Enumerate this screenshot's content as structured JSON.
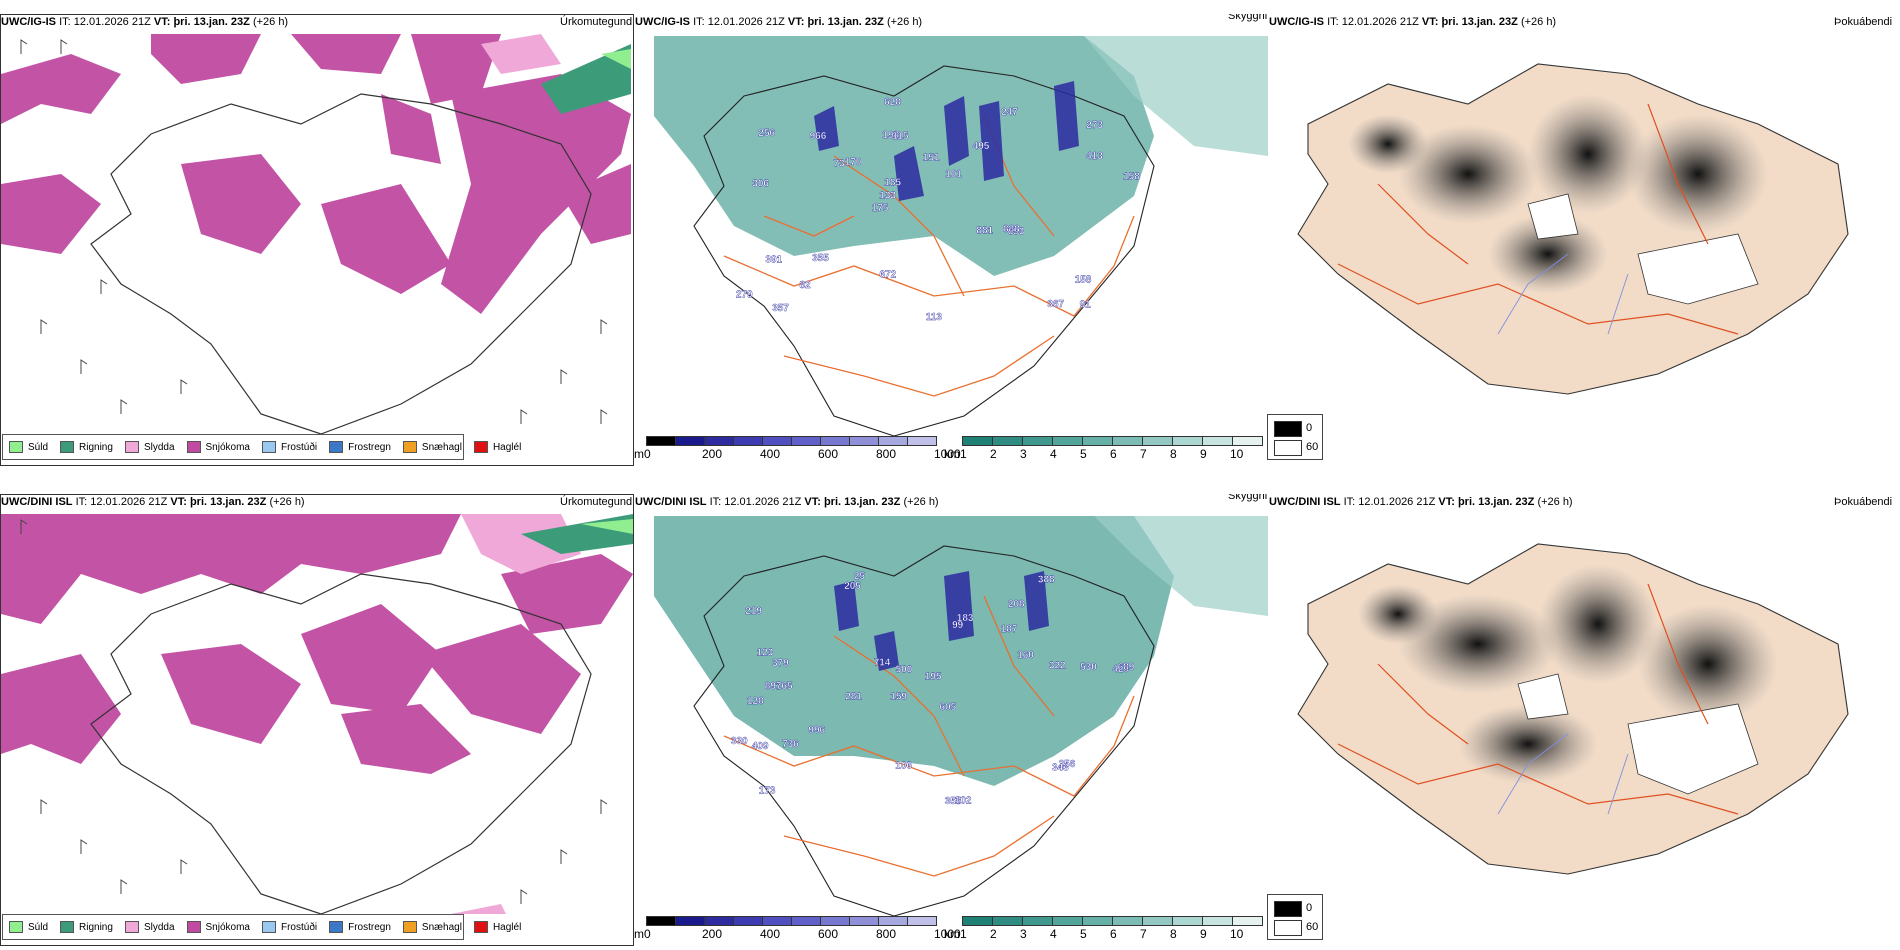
{
  "panels": [
    {
      "row": 0,
      "col": 0,
      "model": "UWC/IG-IS",
      "it_label": "IT:",
      "it": "12.01.2026 21Z",
      "vt_label": "VT:",
      "vt": "þri. 13.jan. 23Z",
      "lead": "(+26 h)",
      "name": "Úrkomutegund"
    },
    {
      "row": 0,
      "col": 1,
      "model": "UWC/IG-IS",
      "it_label": "IT:",
      "it": "12.01.2026 21Z",
      "vt_label": "VT:",
      "vt": "þri. 13.jan. 23Z",
      "lead": "(+26 h)",
      "name": "Skyggni"
    },
    {
      "row": 0,
      "col": 2,
      "model": "UWC/IG-IS",
      "it_label": "IT:",
      "it": "12.01.2026 21Z",
      "vt_label": "VT:",
      "vt": "þri. 13.jan. 23Z",
      "lead": "(+26 h)",
      "name": "Þokuábendi"
    },
    {
      "row": 1,
      "col": 0,
      "model": "UWC/DINI ISL",
      "it_label": "IT:",
      "it": "12.01.2026 21Z",
      "vt_label": "VT:",
      "vt": "þri. 13.jan. 23Z",
      "lead": "(+26 h)",
      "name": "Úrkomutegund"
    },
    {
      "row": 1,
      "col": 1,
      "model": "UWC/DINI ISL",
      "it_label": "IT:",
      "it": "12.01.2026 21Z",
      "vt_label": "VT:",
      "vt": "þri. 13.jan. 23Z",
      "lead": "(+26 h)",
      "name": "Skyggni"
    },
    {
      "row": 1,
      "col": 2,
      "model": "UWC/DINI ISL",
      "it_label": "IT:",
      "it": "12.01.2026 21Z",
      "vt_label": "VT:",
      "vt": "þri. 13.jan. 23Z",
      "lead": "(+26 h)",
      "name": "Þokuábendi"
    }
  ],
  "precip_legend": [
    {
      "label": "Súld",
      "color": "#90ee90"
    },
    {
      "label": "Rigning",
      "color": "#3c9b78"
    },
    {
      "label": "Slydda",
      "color": "#f0a8d8"
    },
    {
      "label": "Snjókoma",
      "color": "#c04aa0"
    },
    {
      "label": "Frostúði",
      "color": "#9ac8f0"
    },
    {
      "label": "Frostregn",
      "color": "#3c78c8"
    },
    {
      "label": "Snæhagl",
      "color": "#f0a020"
    },
    {
      "label": "Haglél",
      "color": "#e01010"
    }
  ],
  "cloudbase_scale": {
    "unit": "m",
    "ticks": [
      "0",
      "200",
      "400",
      "600",
      "800",
      "1000"
    ],
    "colors": [
      "#000000",
      "#1a1a8c",
      "#2c2ca0",
      "#3c3cb0",
      "#5050c0",
      "#6060c8",
      "#7878d0",
      "#9090d8",
      "#a8a8e0",
      "#c0c0e8"
    ]
  },
  "visibility_scale": {
    "unit": "km",
    "ticks": [
      "1",
      "2",
      "3",
      "4",
      "5",
      "6",
      "7",
      "8",
      "9",
      "10"
    ],
    "colors": [
      "#1f8076",
      "#2f8c82",
      "#40998f",
      "#52a59b",
      "#66b0a8",
      "#7cbcb4",
      "#93c8c2",
      "#acd6d0",
      "#c8e4e0",
      "#e6f2f0"
    ]
  },
  "fog_scale": {
    "ticks": [
      "0",
      "60"
    ],
    "colors": [
      "#000000",
      "#ffffff"
    ]
  },
  "cloudbase_labels_top": [
    "91",
    "306",
    "273",
    "175",
    "495",
    "357",
    "198",
    "151",
    "391",
    "170",
    "279",
    "82",
    "115",
    "101",
    "693",
    "256",
    "628",
    "158",
    "881",
    "413",
    "133",
    "672",
    "185",
    "966",
    "247",
    "355",
    "367",
    "158",
    "888",
    "113",
    "73"
  ],
  "cloudbase_labels_bottom": [
    "25",
    "208",
    "420",
    "159",
    "605",
    "165",
    "219",
    "187",
    "128",
    "99",
    "195",
    "173",
    "205",
    "281",
    "355",
    "102",
    "106",
    "388",
    "160",
    "996",
    "379",
    "897",
    "689",
    "530",
    "330",
    "123",
    "500",
    "322",
    "256",
    "409",
    "343",
    "183",
    "736",
    "714"
  ],
  "colors": {
    "snow": "#c04aa0",
    "rain": "#3c9b78",
    "drizzle": "#90ee90",
    "sleet": "#f0a8d8",
    "vis_teal": "#5aa89e",
    "land_fog": "#f2dcc8",
    "roads": "#e87030",
    "rivers": "#8090e0"
  }
}
